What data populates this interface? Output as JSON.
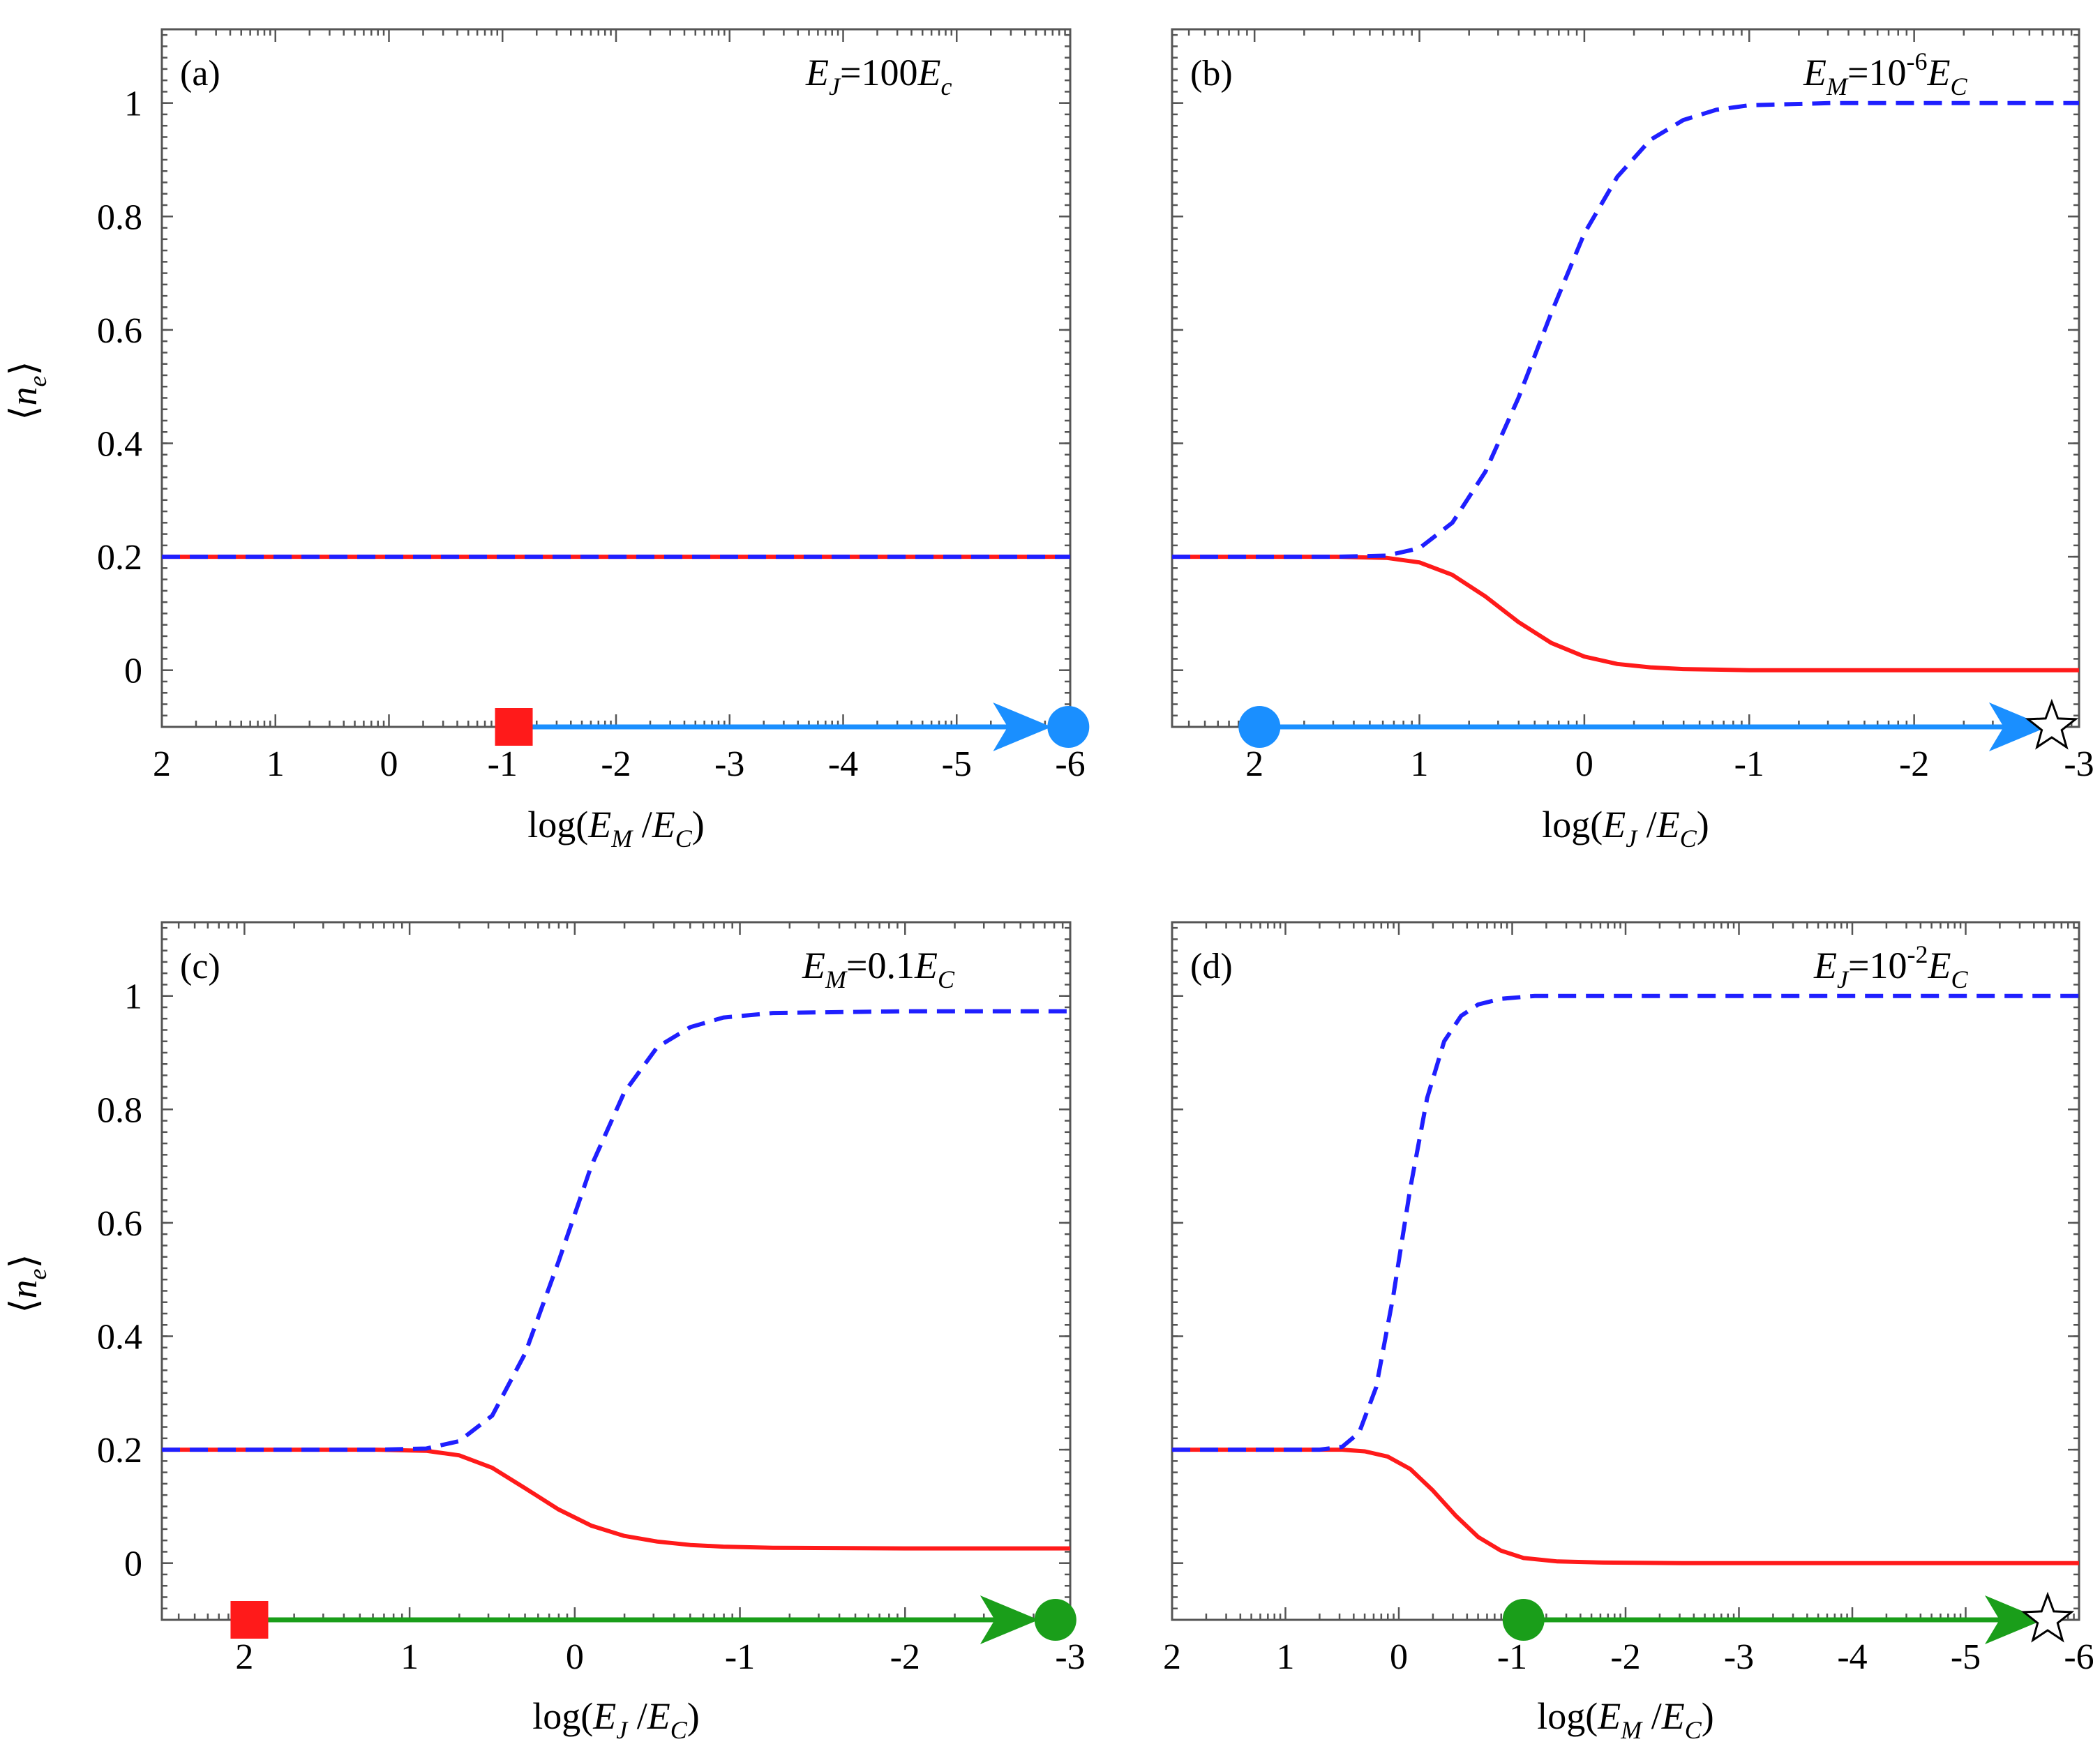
{
  "chart_data": [
    {
      "type": "line",
      "panel": "(a)",
      "annotation": "E_J=100E_c",
      "xlabel": "log(E_M/E_C)",
      "ylabel": "⟨n_e⟩",
      "xlim": [
        2,
        -6
      ],
      "ylim": [
        -0.1,
        1.13
      ],
      "xticks": [
        2,
        1,
        0,
        -1,
        -2,
        -3,
        -4,
        -5,
        -6
      ],
      "xtick_labels": [
        "2",
        "1",
        "0",
        "-1",
        "-2",
        "-3",
        "-4",
        "-5",
        "-6"
      ],
      "yticks": [
        0,
        0.2,
        0.4,
        0.6,
        0.8,
        1
      ],
      "ytick_labels": [
        "0",
        "0.2",
        "0.4",
        "0.6",
        "0.8",
        "1"
      ],
      "series": [
        {
          "name": "blue-dashed",
          "color": "#1f1fff",
          "style": "dashed",
          "x": [
            2,
            0,
            -2,
            -4,
            -6
          ],
          "y": [
            0.2,
            0.2,
            0.2,
            0.2,
            0.2
          ]
        },
        {
          "name": "red-solid",
          "color": "#ff1a1a",
          "style": "solid",
          "x": [
            2,
            0,
            -2,
            -4,
            -6
          ],
          "y": [
            0.2,
            0.2,
            0.2,
            0.2,
            0.2
          ]
        }
      ],
      "arrow": {
        "color": "#1a8fff",
        "from_x": -1.1,
        "to_x": -5.75,
        "start": "red-square",
        "end": "blue-circle"
      }
    },
    {
      "type": "line",
      "panel": "(b)",
      "annotation": "E_M=10^-6 E_C",
      "xlabel": "log(E_J/E_C)",
      "ylabel": "",
      "xlim": [
        2.5,
        -3
      ],
      "ylim": [
        -0.1,
        1.13
      ],
      "xticks": [
        2,
        1,
        0,
        -1,
        -2,
        -3
      ],
      "xtick_labels": [
        "2",
        "1",
        "0",
        "-1",
        "-2",
        "-3"
      ],
      "yticks": [
        0,
        0.2,
        0.4,
        0.6,
        0.8,
        1
      ],
      "ytick_labels": [],
      "series": [
        {
          "name": "blue-dashed",
          "color": "#1f1fff",
          "style": "dashed",
          "x": [
            2.5,
            1.5,
            1.2,
            1.0,
            0.8,
            0.6,
            0.4,
            0.2,
            0.0,
            -0.2,
            -0.4,
            -0.6,
            -0.8,
            -1.0,
            -1.5,
            -3
          ],
          "y": [
            0.2,
            0.2,
            0.202,
            0.215,
            0.26,
            0.35,
            0.48,
            0.63,
            0.77,
            0.87,
            0.935,
            0.97,
            0.988,
            0.996,
            1.0,
            1.0
          ]
        },
        {
          "name": "red-solid",
          "color": "#ff1a1a",
          "style": "solid",
          "x": [
            2.5,
            1.5,
            1.2,
            1.0,
            0.8,
            0.6,
            0.4,
            0.2,
            0.0,
            -0.2,
            -0.4,
            -0.6,
            -0.8,
            -1.0,
            -1.5,
            -3
          ],
          "y": [
            0.2,
            0.2,
            0.198,
            0.19,
            0.168,
            0.13,
            0.085,
            0.048,
            0.024,
            0.011,
            0.005,
            0.002,
            0.001,
            0.0,
            0.0,
            0.0
          ]
        }
      ],
      "arrow": {
        "color": "#1a8fff",
        "from_x": 1.97,
        "to_x": -2.75,
        "start": "blue-circle",
        "end": "star"
      }
    },
    {
      "type": "line",
      "panel": "(c)",
      "annotation": "E_M=0.1E_C",
      "xlabel": "log(E_J/E_C)",
      "ylabel": "⟨n_e⟩",
      "xlim": [
        2.5,
        -3
      ],
      "ylim": [
        -0.1,
        1.13
      ],
      "xticks": [
        2,
        1,
        0,
        -1,
        -2,
        -3
      ],
      "xtick_labels": [
        "2",
        "1",
        "0",
        "-1",
        "-2",
        "-3"
      ],
      "yticks": [
        0,
        0.2,
        0.4,
        0.6,
        0.8,
        1
      ],
      "ytick_labels": [
        "0",
        "0.2",
        "0.4",
        "0.6",
        "0.8",
        "1"
      ],
      "series": [
        {
          "name": "blue-dashed",
          "color": "#1f1fff",
          "style": "dashed",
          "x": [
            2.5,
            1.2,
            0.9,
            0.7,
            0.5,
            0.3,
            0.1,
            -0.1,
            -0.3,
            -0.5,
            -0.7,
            -0.9,
            -1.2,
            -2,
            -3
          ],
          "y": [
            0.2,
            0.2,
            0.202,
            0.215,
            0.26,
            0.37,
            0.53,
            0.7,
            0.83,
            0.91,
            0.945,
            0.962,
            0.97,
            0.973,
            0.973
          ]
        },
        {
          "name": "red-solid",
          "color": "#ff1a1a",
          "style": "solid",
          "x": [
            2.5,
            1.2,
            0.9,
            0.7,
            0.5,
            0.3,
            0.1,
            -0.1,
            -0.3,
            -0.5,
            -0.7,
            -0.9,
            -1.2,
            -2,
            -3
          ],
          "y": [
            0.2,
            0.2,
            0.198,
            0.19,
            0.168,
            0.132,
            0.095,
            0.066,
            0.048,
            0.038,
            0.032,
            0.029,
            0.027,
            0.026,
            0.026
          ]
        }
      ],
      "arrow": {
        "color": "#1a9e1a",
        "from_x": 1.97,
        "to_x": -2.75,
        "start": "red-square",
        "end": "green-circle"
      }
    },
    {
      "type": "line",
      "panel": "(d)",
      "annotation": "E_J=10^-2 E_C",
      "xlabel": "log(E_M/E_C)",
      "ylabel": "",
      "xlim": [
        2,
        -6
      ],
      "ylim": [
        -0.1,
        1.13
      ],
      "xticks": [
        2,
        1,
        0,
        -1,
        -2,
        -3,
        -4,
        -5,
        -6
      ],
      "xtick_labels": [
        "2",
        "1",
        "0",
        "-1",
        "-2",
        "-3",
        "-4",
        "-5",
        "-6"
      ],
      "yticks": [
        0,
        0.2,
        0.4,
        0.6,
        0.8,
        1
      ],
      "ytick_labels": [],
      "series": [
        {
          "name": "blue-dashed",
          "color": "#1f1fff",
          "style": "dashed",
          "x": [
            2,
            0.7,
            0.5,
            0.35,
            0.2,
            0.05,
            -0.1,
            -0.25,
            -0.4,
            -0.55,
            -0.7,
            -0.9,
            -1.2,
            -2,
            -6
          ],
          "y": [
            0.2,
            0.2,
            0.205,
            0.23,
            0.31,
            0.47,
            0.66,
            0.82,
            0.92,
            0.965,
            0.985,
            0.995,
            1.0,
            1.0,
            1.0
          ]
        },
        {
          "name": "red-solid",
          "color": "#ff1a1a",
          "style": "solid",
          "x": [
            2,
            0.5,
            0.3,
            0.1,
            -0.1,
            -0.3,
            -0.5,
            -0.7,
            -0.9,
            -1.1,
            -1.4,
            -1.8,
            -2.5,
            -6
          ],
          "y": [
            0.2,
            0.2,
            0.197,
            0.188,
            0.166,
            0.128,
            0.084,
            0.046,
            0.022,
            0.009,
            0.003,
            0.001,
            0.0,
            0.0
          ]
        }
      ],
      "arrow": {
        "color": "#1a9e1a",
        "from_x": -1.1,
        "to_x": -5.6,
        "start": "green-circle",
        "end": "star"
      }
    }
  ]
}
